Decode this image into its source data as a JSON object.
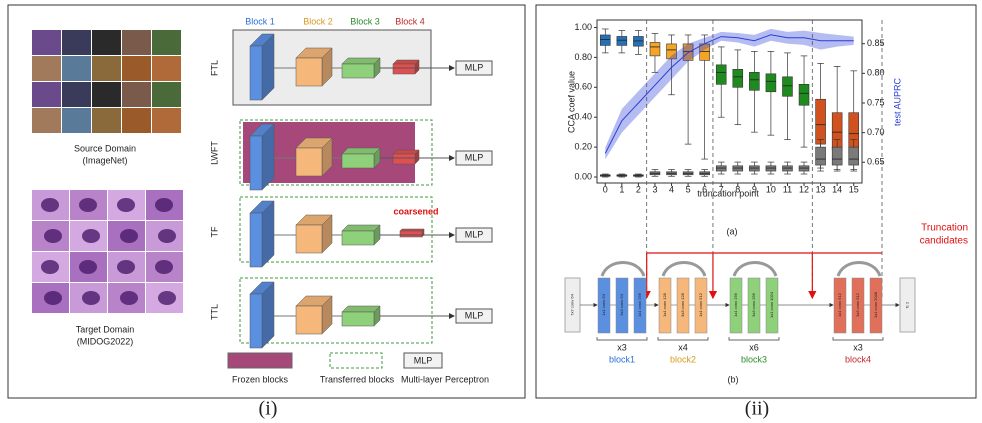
{
  "panel_i": {
    "source_label": "Source Domain",
    "source_name": "(ImageNet)",
    "target_label": "Target Domain",
    "target_name": "(MIDOG2022)",
    "blocks": [
      "Block 1",
      "Block 2",
      "Block 3",
      "Block 4"
    ],
    "rows": [
      "FTL",
      "LWFT",
      "TF",
      "TTL"
    ],
    "mlp": "MLP",
    "coarsened": "coarsened",
    "legend_frozen": "Frozen blocks",
    "legend_transferred": "Transferred blocks",
    "legend_mlp": "MLP",
    "legend_mlp_name": "Multi-layer Perceptron",
    "caption": "(i)"
  },
  "chart_data": {
    "type": "box",
    "xlabel": "truncation point",
    "ylabel": "CCA coef value",
    "y2label": "test AUPRC",
    "categories": [
      "0",
      "1",
      "2",
      "3",
      "4",
      "5",
      "6",
      "7",
      "8",
      "9",
      "10",
      "11",
      "12",
      "13",
      "14",
      "15"
    ],
    "ylim": [
      -0.04,
      1.05
    ],
    "yticks": [
      {
        "value": 0,
        "label": "0.00"
      },
      {
        "value": 0.2,
        "label": "0.20"
      },
      {
        "value": 0.4,
        "label": "0.40"
      },
      {
        "value": 0.6,
        "label": "0.60"
      },
      {
        "value": 0.8,
        "label": "0.80"
      },
      {
        "value": 1,
        "label": "1.00"
      }
    ],
    "y2lim": [
      0.615,
      0.89
    ],
    "y2ticks": [
      0.65,
      {
        "value": 0.7,
        "label": "0.70"
      },
      0.75,
      {
        "value": 0.8,
        "label": "0.80"
      },
      0.85
    ],
    "boxes": [
      {
        "q1": 0.88,
        "median": 0.92,
        "q3": 0.95,
        "lo": 0.83,
        "hi": 0.99,
        "color": "#2471b5"
      },
      {
        "q1": 0.88,
        "median": 0.915,
        "q3": 0.94,
        "lo": 0.83,
        "hi": 0.98,
        "color": "#2471b5"
      },
      {
        "q1": 0.875,
        "median": 0.91,
        "q3": 0.94,
        "lo": 0.82,
        "hi": 0.98,
        "color": "#2471b5"
      },
      {
        "q1": 0.81,
        "median": 0.87,
        "q3": 0.9,
        "lo": 0.7,
        "hi": 0.96,
        "color": "#f5a42a"
      },
      {
        "q1": 0.79,
        "median": 0.85,
        "q3": 0.89,
        "lo": 0.55,
        "hi": 0.95,
        "color": "#f5a42a"
      },
      {
        "q1": 0.78,
        "median": 0.84,
        "q3": 0.89,
        "lo": 0.22,
        "hi": 0.95,
        "color": "#f5a42a"
      },
      {
        "q1": 0.78,
        "median": 0.84,
        "q3": 0.89,
        "lo": 0.12,
        "hi": 0.95,
        "color": "#f5a42a"
      },
      {
        "q1": 0.62,
        "median": 0.7,
        "q3": 0.75,
        "lo": 0.4,
        "hi": 0.87,
        "color": "#1f8a1f"
      },
      {
        "q1": 0.6,
        "median": 0.67,
        "q3": 0.72,
        "lo": 0.35,
        "hi": 0.85,
        "color": "#1f8a1f"
      },
      {
        "q1": 0.58,
        "median": 0.65,
        "q3": 0.7,
        "lo": 0.3,
        "hi": 0.84,
        "color": "#1f8a1f"
      },
      {
        "q1": 0.57,
        "median": 0.64,
        "q3": 0.69,
        "lo": 0.28,
        "hi": 0.84,
        "color": "#1f8a1f"
      },
      {
        "q1": 0.54,
        "median": 0.61,
        "q3": 0.67,
        "lo": 0.25,
        "hi": 0.83,
        "color": "#1f8a1f"
      },
      {
        "q1": 0.48,
        "median": 0.56,
        "q3": 0.62,
        "lo": 0.2,
        "hi": 0.81,
        "color": "#1f8a1f"
      },
      {
        "q1": 0.22,
        "median": 0.35,
        "q3": 0.52,
        "lo": 0.06,
        "hi": 0.76,
        "color": "#d2521f"
      },
      {
        "q1": 0.18,
        "median": 0.3,
        "q3": 0.43,
        "lo": 0.05,
        "hi": 0.74,
        "color": "#d2521f"
      },
      {
        "q1": 0.16,
        "median": 0.29,
        "q3": 0.43,
        "lo": 0.05,
        "hi": 0.71,
        "color": "#d2521f"
      }
    ],
    "low_color": "#7a7a7a",
    "low_boxes": [
      {
        "q1": 0.005,
        "median": 0.01,
        "q3": 0.015,
        "lo": 0,
        "hi": 0.02
      },
      {
        "q1": 0.005,
        "median": 0.01,
        "q3": 0.015,
        "lo": 0,
        "hi": 0.02
      },
      {
        "q1": 0.005,
        "median": 0.01,
        "q3": 0.015,
        "lo": 0,
        "hi": 0.02
      },
      {
        "q1": 0.015,
        "median": 0.025,
        "q3": 0.035,
        "lo": 0.005,
        "hi": 0.05
      },
      {
        "q1": 0.015,
        "median": 0.025,
        "q3": 0.035,
        "lo": 0.005,
        "hi": 0.05
      },
      {
        "q1": 0.015,
        "median": 0.025,
        "q3": 0.035,
        "lo": 0.005,
        "hi": 0.05
      },
      {
        "q1": 0.015,
        "median": 0.025,
        "q3": 0.035,
        "lo": 0.005,
        "hi": 0.05
      },
      {
        "q1": 0.04,
        "median": 0.06,
        "q3": 0.075,
        "lo": 0.02,
        "hi": 0.1
      },
      {
        "q1": 0.04,
        "median": 0.06,
        "q3": 0.075,
        "lo": 0.02,
        "hi": 0.1
      },
      {
        "q1": 0.04,
        "median": 0.06,
        "q3": 0.075,
        "lo": 0.02,
        "hi": 0.1
      },
      {
        "q1": 0.04,
        "median": 0.06,
        "q3": 0.075,
        "lo": 0.02,
        "hi": 0.1
      },
      {
        "q1": 0.04,
        "median": 0.06,
        "q3": 0.075,
        "lo": 0.02,
        "hi": 0.1
      },
      {
        "q1": 0.04,
        "median": 0.06,
        "q3": 0.075,
        "lo": 0.02,
        "hi": 0.1
      },
      {
        "q1": 0.08,
        "median": 0.12,
        "q3": 0.2,
        "lo": 0.04,
        "hi": 0.25
      },
      {
        "q1": 0.08,
        "median": 0.12,
        "q3": 0.2,
        "lo": 0.04,
        "hi": 0.25
      },
      {
        "q1": 0.08,
        "median": 0.12,
        "q3": 0.2,
        "lo": 0.04,
        "hi": 0.25
      }
    ],
    "series": [
      {
        "axis": "y2",
        "color": "#2a3fd6",
        "values": [
          0.665,
          0.72,
          0.75,
          0.78,
          0.81,
          0.835,
          0.85,
          0.862,
          0.86,
          0.855,
          0.865,
          0.86,
          0.86,
          0.855,
          0.855,
          0.855
        ],
        "lower": [
          0.655,
          0.7,
          0.73,
          0.76,
          0.79,
          0.82,
          0.84,
          0.855,
          0.852,
          0.845,
          0.855,
          0.85,
          0.848,
          0.84,
          0.845,
          0.848
        ],
        "upper": [
          0.675,
          0.74,
          0.77,
          0.8,
          0.83,
          0.85,
          0.86,
          0.87,
          0.868,
          0.865,
          0.875,
          0.87,
          0.872,
          0.868,
          0.865,
          0.862
        ]
      }
    ]
  },
  "panel_ii": {
    "chart_caption": "(a)",
    "truncation_label": [
      "Truncation",
      "candidates"
    ],
    "stem": "7x7 conv 64",
    "head": "fc 2",
    "blocks": [
      {
        "layers": [
          "1x1 conv 64",
          "3x3 conv 64",
          "1x1 conv 256"
        ],
        "repeat": "x3",
        "name": "block1"
      },
      {
        "layers": [
          "1x1 conv 128",
          "3x3 conv 128",
          "1x1 conv 512"
        ],
        "repeat": "x4",
        "name": "block2"
      },
      {
        "layers": [
          "1x1 conv 256",
          "3x3 conv 256",
          "1x1 conv 1024"
        ],
        "repeat": "x6",
        "name": "block3"
      },
      {
        "layers": [
          "1x1 conv 512",
          "3x3 conv 512",
          "1x1 conv 2048"
        ],
        "repeat": "x3",
        "name": "block4"
      }
    ],
    "diagram_caption": "(b)",
    "caption": "(ii)"
  }
}
